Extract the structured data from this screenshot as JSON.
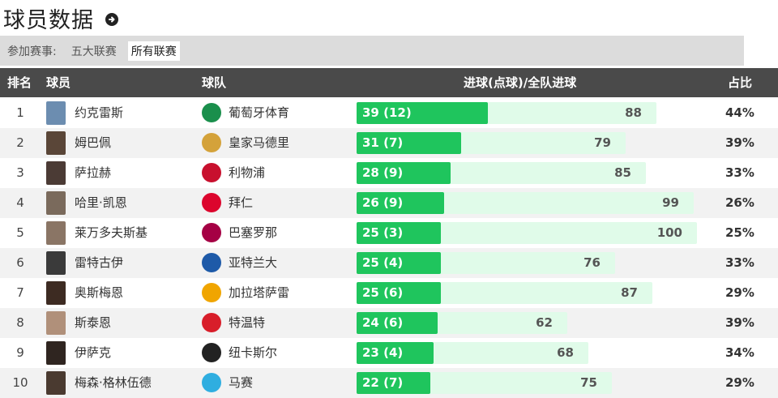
{
  "page": {
    "title": "球员数据"
  },
  "filter": {
    "label": "参加赛事:",
    "options": [
      {
        "label": "五大联赛",
        "active": false
      },
      {
        "label": "所有联赛",
        "active": true
      }
    ]
  },
  "table": {
    "headers": {
      "rank": "排名",
      "player": "球员",
      "team": "球队",
      "goals": "进球(点球)/全队进球",
      "ratio": "占比"
    },
    "max_team_goals": 100,
    "rows": [
      {
        "rank": "1",
        "player": "约克雷斯",
        "team": "葡萄牙体育",
        "goals": "39 (12)",
        "player_goals": 39,
        "team_goals": 88,
        "team_goals_label": "88",
        "ratio": "44%",
        "avatar_color": "#6c8db0",
        "logo_color": "#1a8f4c"
      },
      {
        "rank": "2",
        "player": "姆巴佩",
        "team": "皇家马德里",
        "goals": "31 (7)",
        "player_goals": 31,
        "team_goals": 79,
        "team_goals_label": "79",
        "ratio": "39%",
        "avatar_color": "#5a4638",
        "logo_color": "#d4a23a"
      },
      {
        "rank": "3",
        "player": "萨拉赫",
        "team": "利物浦",
        "goals": "28 (9)",
        "player_goals": 28,
        "team_goals": 85,
        "team_goals_label": "85",
        "ratio": "33%",
        "avatar_color": "#4b3b35",
        "logo_color": "#c8102e"
      },
      {
        "rank": "4",
        "player": "哈里·凯恩",
        "team": "拜仁",
        "goals": "26 (9)",
        "player_goals": 26,
        "team_goals": 99,
        "team_goals_label": "99",
        "ratio": "26%",
        "avatar_color": "#7a6a5c",
        "logo_color": "#dc052d"
      },
      {
        "rank": "5",
        "player": "莱万多夫斯基",
        "team": "巴塞罗那",
        "goals": "25 (3)",
        "player_goals": 25,
        "team_goals": 100,
        "team_goals_label": "100",
        "ratio": "25%",
        "avatar_color": "#8a7565",
        "logo_color": "#a50044"
      },
      {
        "rank": "6",
        "player": "雷特古伊",
        "team": "亚特兰大",
        "goals": "25 (4)",
        "player_goals": 25,
        "team_goals": 76,
        "team_goals_label": "76",
        "ratio": "33%",
        "avatar_color": "#3a3a3a",
        "logo_color": "#1e5aa8"
      },
      {
        "rank": "7",
        "player": "奥斯梅恩",
        "team": "加拉塔萨雷",
        "goals": "25 (6)",
        "player_goals": 25,
        "team_goals": 87,
        "team_goals_label": "87",
        "ratio": "29%",
        "avatar_color": "#3d2b22",
        "logo_color": "#f0a500"
      },
      {
        "rank": "8",
        "player": "斯泰恩",
        "team": "特温特",
        "goals": "24 (6)",
        "player_goals": 24,
        "team_goals": 62,
        "team_goals_label": "62",
        "ratio": "39%",
        "avatar_color": "#b0907a",
        "logo_color": "#d81e2a"
      },
      {
        "rank": "9",
        "player": "伊萨克",
        "team": "纽卡斯尔",
        "goals": "23 (4)",
        "player_goals": 23,
        "team_goals": 68,
        "team_goals_label": "68",
        "ratio": "34%",
        "avatar_color": "#2f2520",
        "logo_color": "#222222"
      },
      {
        "rank": "10",
        "player": "梅森·格林伍德",
        "team": "马赛",
        "goals": "22 (7)",
        "player_goals": 22,
        "team_goals": 75,
        "team_goals_label": "75",
        "ratio": "29%",
        "avatar_color": "#4a3a30",
        "logo_color": "#2faee0"
      }
    ]
  }
}
